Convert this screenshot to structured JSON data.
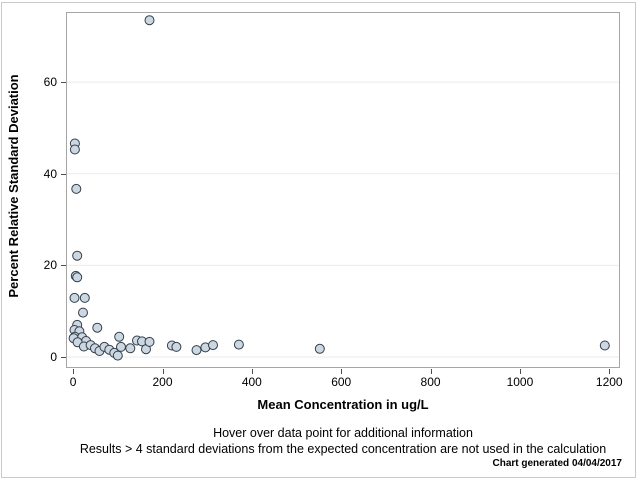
{
  "chart_data": {
    "type": "scatter",
    "title": "",
    "xlabel": "Mean Concentration in ug/L",
    "ylabel": "Percent Relative Standard Deviation",
    "xlim": [
      -16,
      1224
    ],
    "ylim": [
      -2.4,
      75.3
    ],
    "x_ticks": [
      0,
      200,
      400,
      600,
      800,
      1000,
      1200
    ],
    "y_ticks": [
      0,
      20,
      40,
      60
    ],
    "grid": "horizontal-only",
    "legend_position": "none",
    "points": [
      [
        171,
        73.5
      ],
      [
        4,
        46.6
      ],
      [
        4,
        45.3
      ],
      [
        7,
        36.7
      ],
      [
        9,
        22.1
      ],
      [
        6,
        17.7
      ],
      [
        9,
        17.4
      ],
      [
        3,
        12.9
      ],
      [
        26,
        12.9
      ],
      [
        22,
        9.7
      ],
      [
        9,
        7.0
      ],
      [
        54,
        6.4
      ],
      [
        3,
        5.9
      ],
      [
        14,
        5.6
      ],
      [
        4,
        4.4
      ],
      [
        20,
        4.3
      ],
      [
        1,
        4.1
      ],
      [
        29,
        3.5
      ],
      [
        10,
        3.2
      ],
      [
        24,
        2.3
      ],
      [
        39,
        2.6
      ],
      [
        49,
        1.9
      ],
      [
        59,
        1.3
      ],
      [
        70,
        2.2
      ],
      [
        81,
        1.6
      ],
      [
        92,
        0.9
      ],
      [
        100,
        0.3
      ],
      [
        103,
        4.4
      ],
      [
        107,
        2.2
      ],
      [
        128,
        1.9
      ],
      [
        143,
        3.6
      ],
      [
        154,
        3.4
      ],
      [
        163,
        1.7
      ],
      [
        171,
        3.3
      ],
      [
        221,
        2.5
      ],
      [
        231,
        2.2
      ],
      [
        276,
        1.5
      ],
      [
        296,
        2.1
      ],
      [
        313,
        2.6
      ],
      [
        371,
        2.7
      ],
      [
        552,
        1.8
      ],
      [
        1190,
        2.5
      ]
    ]
  },
  "footnotes": {
    "line1": "Hover over data point for additional information",
    "line2": "Results > 4 standard deviations from the expected concentration are not used in the calculation"
  },
  "generated_note": "Chart generated 04/04/2017",
  "colors": {
    "marker_fill": "#ccd7e4",
    "marker_stroke": "#333e47",
    "frame": "#a6a6a6",
    "gridline": "#ebebeb",
    "tick": "#4d4d4d",
    "border": "#c9c9c9",
    "text": "#000000",
    "background": "#ffffff"
  }
}
